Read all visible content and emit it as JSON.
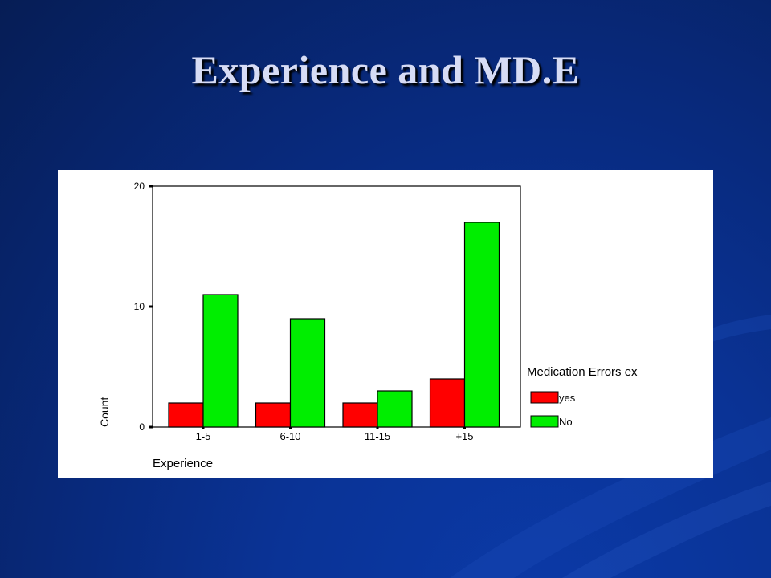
{
  "slide": {
    "title": "Experience and MD.E"
  },
  "colors": {
    "background": "#082a7e",
    "title_text": "#d7dcf5",
    "series_yes": "#ff0000",
    "series_no": "#00ee00"
  },
  "chart_data": {
    "type": "bar",
    "title": "",
    "xlabel": "Experience",
    "ylabel": "Count",
    "categories": [
      "1-5",
      "6-10",
      "11-15",
      "+15"
    ],
    "y_ticks": [
      "0",
      "10",
      "20"
    ],
    "ylim": [
      0,
      20
    ],
    "legend_title": "Medication Errors ex",
    "legend_position": "right",
    "grid": false,
    "series": [
      {
        "name": "yes",
        "color": "#ff0000",
        "values": [
          2,
          2,
          2,
          4
        ]
      },
      {
        "name": "No",
        "color": "#00ee00",
        "values": [
          11,
          9,
          3,
          17
        ]
      }
    ]
  }
}
